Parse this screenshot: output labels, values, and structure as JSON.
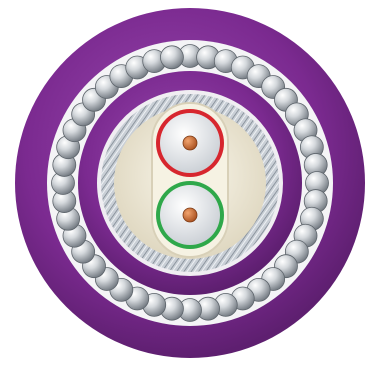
{
  "subject": {
    "icon": "cable-cross-section-icon"
  },
  "colors": {
    "background": "#ffffff",
    "outer_sheath": "#7b2a90",
    "outer_sheath_highlight": "#9a4ab0",
    "armour_gap": "#ffffff",
    "inner_sheath": "#7b2a90",
    "braid_screen": "#b8bfc8",
    "filler": "#ece6d2",
    "conductor_red_ring": "#d7262e",
    "conductor_green_ring": "#2fa84a",
    "conductor_insulation": "#e9ecef",
    "conductor_core": "#c8672f",
    "wire_light": "#eef0f2",
    "wire_dark": "#7d848c"
  },
  "armour": {
    "wire_count": 44
  },
  "conductors": [
    {
      "ring_color_key": "conductor_red_ring"
    },
    {
      "ring_color_key": "conductor_green_ring"
    }
  ]
}
